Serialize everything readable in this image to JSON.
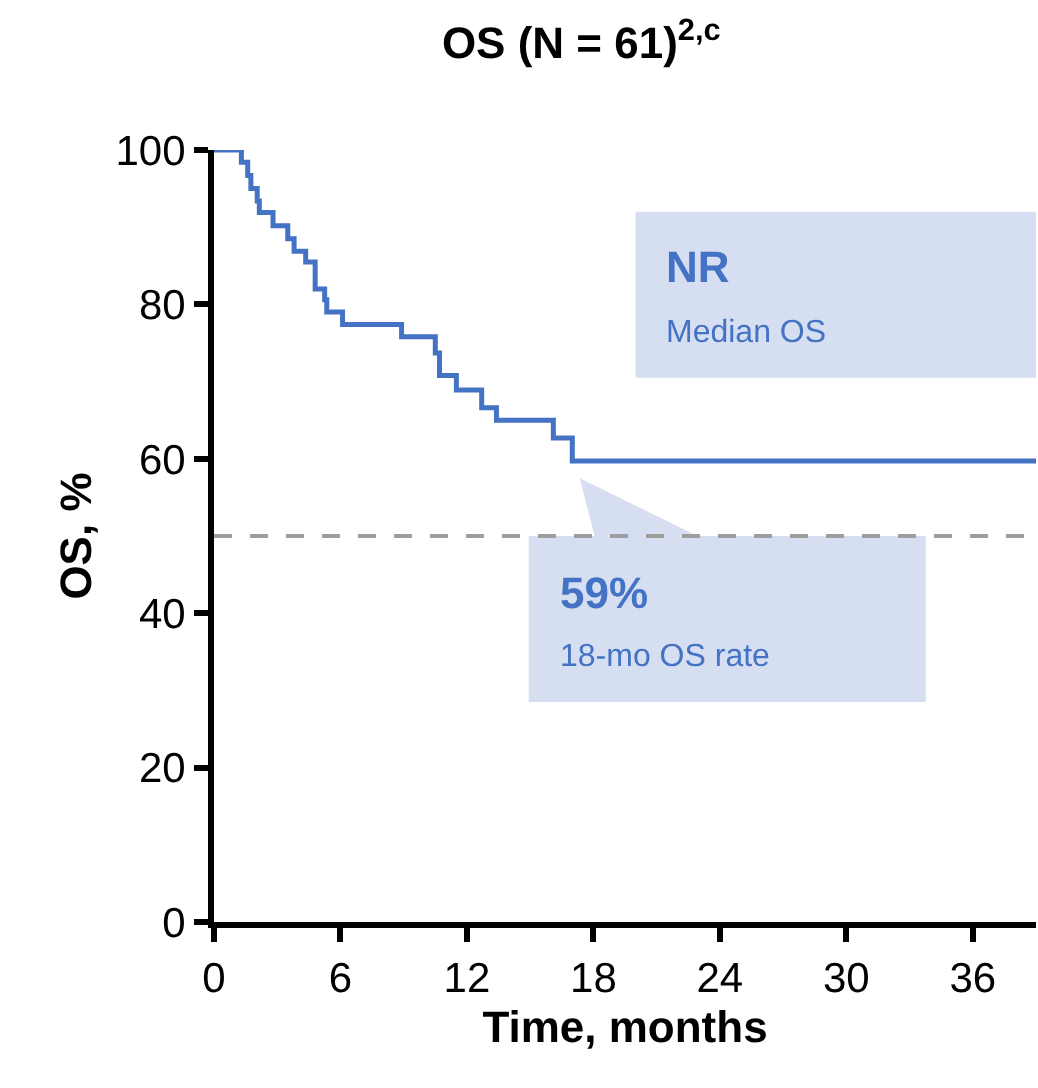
{
  "chart_data": {
    "type": "step",
    "title": "OS (N = 61)$^{2,c}$",
    "xlabel": "Time, months",
    "ylabel": "OS, %",
    "x": [
      0,
      1.3,
      1.6,
      1.75,
      2.05,
      2.15,
      2.8,
      3.5,
      3.8,
      4.35,
      4.8,
      5.25,
      5.35,
      6.1,
      8.9,
      10.5,
      10.7,
      11.5,
      12.7,
      13.4,
      16.1,
      17.0,
      39
    ],
    "series": [
      {
        "color": "#4472c4",
        "values": [
          100,
          98.4,
          96.7,
          95,
          93.4,
          91.9,
          90.2,
          88.5,
          86.9,
          85.5,
          82,
          80.6,
          79,
          77.4,
          75.8,
          73.7,
          70.8,
          68.9,
          66.6,
          65,
          62.7,
          59.7,
          59.7
        ]
      }
    ],
    "xlim": [
      0,
      39
    ],
    "xticks": [
      0,
      6,
      12,
      18,
      24,
      30,
      36
    ],
    "ylim": [
      0,
      100
    ],
    "yticks": [
      0,
      20,
      40,
      60,
      80,
      100
    ],
    "ref_lines": [
      {
        "axis": "y",
        "value": 50,
        "color": "#9e9e9e",
        "line_style": "dashed"
      }
    ],
    "annotations": [
      "NR",
      "Median OS",
      "59%",
      "18-mo OS rate"
    ],
    "line_style": "solid"
  }
}
